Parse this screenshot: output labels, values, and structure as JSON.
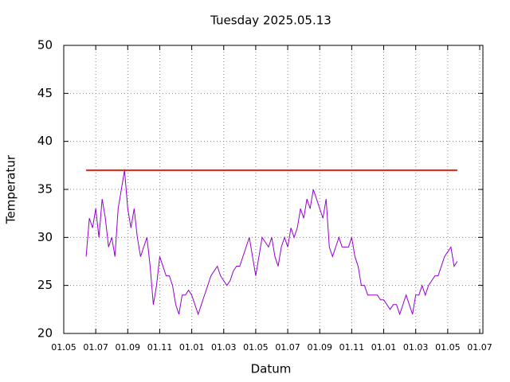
{
  "chart_data": {
    "type": "line",
    "title": "Tuesday 2025.05.13",
    "xlabel": "Datum",
    "ylabel": "Temperatur",
    "xlim": [
      0,
      26.2
    ],
    "ylim": [
      20,
      50
    ],
    "xticks": [
      {
        "value": 0,
        "label": "01.05"
      },
      {
        "value": 2,
        "label": "01.07"
      },
      {
        "value": 4,
        "label": "01.09"
      },
      {
        "value": 6,
        "label": "01.11"
      },
      {
        "value": 8,
        "label": "01.01"
      },
      {
        "value": 10,
        "label": "01.03"
      },
      {
        "value": 12,
        "label": "01.05"
      },
      {
        "value": 14,
        "label": "01.07"
      },
      {
        "value": 16,
        "label": "01.09"
      },
      {
        "value": 18,
        "label": "01.11"
      },
      {
        "value": 20,
        "label": "01.01"
      },
      {
        "value": 22,
        "label": "01.03"
      },
      {
        "value": 24,
        "label": "01.05"
      },
      {
        "value": 26,
        "label": "01.07"
      }
    ],
    "yticks": [
      20,
      25,
      30,
      35,
      40,
      45,
      50
    ],
    "grid": true,
    "series": [
      {
        "color": "#9400d3",
        "x": [
          1.4,
          1.6,
          1.8,
          2,
          2.2,
          2.4,
          2.6,
          2.8,
          3,
          3.2,
          3.4,
          3.6,
          3.8,
          4,
          4.2,
          4.4,
          4.6,
          4.8,
          5,
          5.2,
          5.4,
          5.6,
          5.8,
          6,
          6.2,
          6.4,
          6.6,
          6.8,
          7,
          7.2,
          7.4,
          7.6,
          7.8,
          8,
          8.2,
          8.4,
          8.6,
          8.8,
          9,
          9.2,
          9.4,
          9.6,
          9.8,
          10,
          10.2,
          10.4,
          10.6,
          10.8,
          11,
          11.2,
          11.4,
          11.6,
          11.8,
          12,
          12.2,
          12.4,
          12.6,
          12.8,
          13,
          13.2,
          13.4,
          13.6,
          13.8,
          14,
          14.2,
          14.4,
          14.6,
          14.8,
          15,
          15.2,
          15.4,
          15.6,
          15.8,
          16,
          16.2,
          16.4,
          16.6,
          16.8,
          17,
          17.2,
          17.4,
          17.6,
          17.8,
          18,
          18.2,
          18.4,
          18.6,
          18.8,
          19,
          19.2,
          19.4,
          19.6,
          19.8,
          20,
          20.2,
          20.4,
          20.6,
          20.8,
          21,
          21.2,
          21.4,
          21.6,
          21.8,
          22,
          22.2,
          22.4,
          22.6,
          22.8,
          23,
          23.2,
          23.4,
          23.6,
          23.8,
          24,
          24.2,
          24.4,
          24.6
        ],
        "values": [
          28,
          32,
          31,
          33,
          30,
          34,
          32,
          29,
          30,
          28,
          33,
          35,
          37,
          33,
          31,
          33,
          30,
          28,
          29,
          30,
          27,
          23,
          25,
          28,
          27,
          26,
          26,
          25,
          23,
          22,
          24,
          24,
          24.5,
          24,
          23,
          22,
          23,
          24,
          25,
          26,
          26.5,
          27,
          26,
          25.5,
          25,
          25.5,
          26.5,
          27,
          27,
          28,
          29,
          30,
          28,
          26,
          28,
          30,
          29.5,
          29,
          30,
          28,
          27,
          29,
          30,
          29,
          31,
          30,
          31,
          33,
          32,
          34,
          33,
          35,
          34,
          33,
          32,
          34,
          29,
          28,
          29,
          30,
          29,
          29,
          29,
          30,
          28,
          27,
          25,
          25,
          24,
          24,
          24,
          24,
          23.5,
          23.5,
          23,
          22.5,
          23,
          23,
          22,
          23,
          24,
          23,
          22,
          24,
          24,
          25,
          24,
          25,
          25.5,
          26,
          26,
          27,
          28,
          28.5,
          29,
          27,
          27.5
        ]
      },
      {
        "color": "#e51e10",
        "x": [
          1.4,
          24.6
        ],
        "values": [
          37,
          37
        ]
      }
    ]
  }
}
